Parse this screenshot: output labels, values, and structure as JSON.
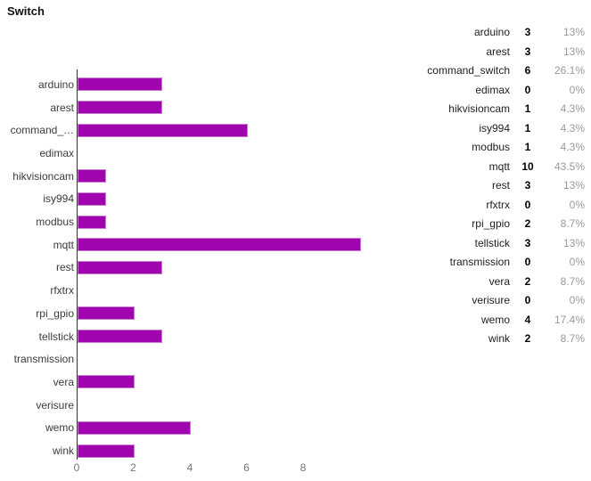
{
  "title": "Switch",
  "colors": {
    "bar_fill": "#a004ae",
    "bar_border": "#c77fd0",
    "axis_line": "#333333",
    "tick_label": "#757575",
    "category_label": "#3c3c3c",
    "table_name": "#212121",
    "table_count": "#000000",
    "table_pct": "#9a9a9a",
    "background": "#ffffff"
  },
  "chart_data": {
    "type": "bar",
    "orientation": "horizontal",
    "title": "Switch",
    "xlabel": "",
    "ylabel": "",
    "categories": [
      "arduino",
      "arest",
      "command_switch",
      "edimax",
      "hikvisioncam",
      "isy994",
      "modbus",
      "mqtt",
      "rest",
      "rfxtrx",
      "rpi_gpio",
      "tellstick",
      "transmission",
      "vera",
      "verisure",
      "wemo",
      "wink"
    ],
    "display_labels": [
      "arduino",
      "arest",
      "command_…",
      "edimax",
      "hikvisioncam",
      "isy994",
      "modbus",
      "mqtt",
      "rest",
      "rfxtrx",
      "rpi_gpio",
      "tellstick",
      "transmission",
      "vera",
      "verisure",
      "wemo",
      "wink"
    ],
    "values": [
      3,
      3,
      6,
      0,
      1,
      1,
      1,
      10,
      3,
      0,
      2,
      3,
      0,
      2,
      0,
      4,
      2
    ],
    "percentages": [
      "13%",
      "13%",
      "26.1%",
      "0%",
      "4.3%",
      "4.3%",
      "4.3%",
      "43.5%",
      "13%",
      "0%",
      "8.7%",
      "13%",
      "0%",
      "8.7%",
      "0%",
      "17.4%",
      "8.7%"
    ],
    "x_ticks": [
      0,
      2,
      4,
      6,
      8
    ],
    "xlim": [
      0,
      10.6
    ],
    "grid": false,
    "legend_position": "right-table"
  },
  "table": {
    "rows": [
      {
        "name": "arduino",
        "count": "3",
        "pct": "13%"
      },
      {
        "name": "arest",
        "count": "3",
        "pct": "13%"
      },
      {
        "name": "command_switch",
        "count": "6",
        "pct": "26.1%"
      },
      {
        "name": "edimax",
        "count": "0",
        "pct": "0%"
      },
      {
        "name": "hikvisioncam",
        "count": "1",
        "pct": "4.3%"
      },
      {
        "name": "isy994",
        "count": "1",
        "pct": "4.3%"
      },
      {
        "name": "modbus",
        "count": "1",
        "pct": "4.3%"
      },
      {
        "name": "mqtt",
        "count": "10",
        "pct": "43.5%"
      },
      {
        "name": "rest",
        "count": "3",
        "pct": "13%"
      },
      {
        "name": "rfxtrx",
        "count": "0",
        "pct": "0%"
      },
      {
        "name": "rpi_gpio",
        "count": "2",
        "pct": "8.7%"
      },
      {
        "name": "tellstick",
        "count": "3",
        "pct": "13%"
      },
      {
        "name": "transmission",
        "count": "0",
        "pct": "0%"
      },
      {
        "name": "vera",
        "count": "2",
        "pct": "8.7%"
      },
      {
        "name": "verisure",
        "count": "0",
        "pct": "0%"
      },
      {
        "name": "wemo",
        "count": "4",
        "pct": "17.4%"
      },
      {
        "name": "wink",
        "count": "2",
        "pct": "8.7%"
      }
    ]
  }
}
